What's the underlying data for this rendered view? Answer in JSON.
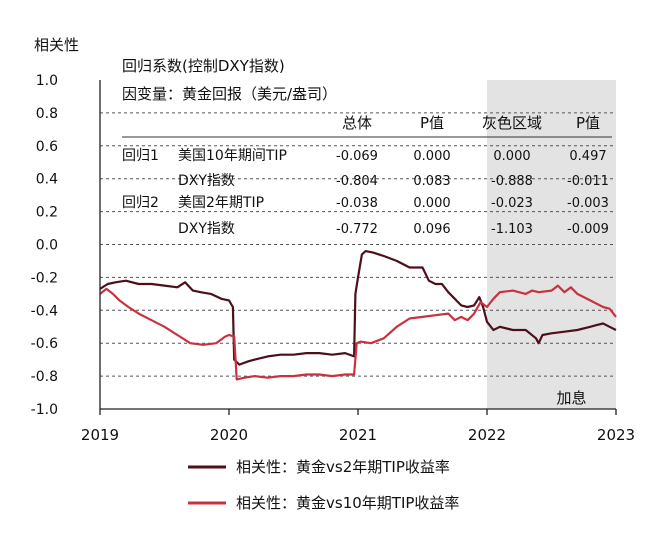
{
  "chart_data": {
    "type": "line",
    "ylabel": "相关性",
    "ylim": [
      -1.0,
      1.0
    ],
    "yticks": [
      "1.0",
      "0.8",
      "0.6",
      "0.4",
      "0.2",
      "0.0",
      "-0.2",
      "-0.4",
      "-0.6",
      "-0.8",
      "-1.0"
    ],
    "xlim": [
      2019.0,
      2023.0
    ],
    "xticks": [
      "2019",
      "2020",
      "2021",
      "2022",
      "2023"
    ],
    "grid": "horizontal dashed",
    "legend_position": "bottom",
    "shaded_region": {
      "x_start": 2022.0,
      "x_end": 2023.0,
      "label": "加息",
      "color": "#e3e3e3"
    },
    "series": [
      {
        "name": "相关性：黄金vs2年期TIP收益率",
        "color": "#4d0f1c",
        "points": [
          [
            2019.0,
            -0.27
          ],
          [
            2019.06,
            -0.24
          ],
          [
            2019.12,
            -0.23
          ],
          [
            2019.2,
            -0.22
          ],
          [
            2019.3,
            -0.24
          ],
          [
            2019.4,
            -0.24
          ],
          [
            2019.5,
            -0.25
          ],
          [
            2019.6,
            -0.26
          ],
          [
            2019.66,
            -0.23
          ],
          [
            2019.72,
            -0.28
          ],
          [
            2019.78,
            -0.29
          ],
          [
            2019.86,
            -0.3
          ],
          [
            2019.94,
            -0.33
          ],
          [
            2020.0,
            -0.34
          ],
          [
            2020.03,
            -0.38
          ],
          [
            2020.04,
            -0.7
          ],
          [
            2020.08,
            -0.73
          ],
          [
            2020.15,
            -0.71
          ],
          [
            2020.2,
            -0.7
          ],
          [
            2020.3,
            -0.68
          ],
          [
            2020.4,
            -0.67
          ],
          [
            2020.5,
            -0.67
          ],
          [
            2020.6,
            -0.66
          ],
          [
            2020.7,
            -0.66
          ],
          [
            2020.8,
            -0.67
          ],
          [
            2020.9,
            -0.66
          ],
          [
            2020.97,
            -0.68
          ],
          [
            2020.98,
            -0.3
          ],
          [
            2021.0,
            -0.2
          ],
          [
            2021.03,
            -0.06
          ],
          [
            2021.06,
            -0.04
          ],
          [
            2021.12,
            -0.05
          ],
          [
            2021.2,
            -0.07
          ],
          [
            2021.3,
            -0.1
          ],
          [
            2021.4,
            -0.14
          ],
          [
            2021.5,
            -0.14
          ],
          [
            2021.55,
            -0.22
          ],
          [
            2021.6,
            -0.24
          ],
          [
            2021.65,
            -0.24
          ],
          [
            2021.7,
            -0.29
          ],
          [
            2021.8,
            -0.37
          ],
          [
            2021.85,
            -0.38
          ],
          [
            2021.9,
            -0.37
          ],
          [
            2021.94,
            -0.32
          ],
          [
            2021.97,
            -0.38
          ],
          [
            2022.0,
            -0.47
          ],
          [
            2022.05,
            -0.52
          ],
          [
            2022.1,
            -0.5
          ],
          [
            2022.2,
            -0.52
          ],
          [
            2022.3,
            -0.52
          ],
          [
            2022.38,
            -0.57
          ],
          [
            2022.4,
            -0.6
          ],
          [
            2022.43,
            -0.55
          ],
          [
            2022.5,
            -0.54
          ],
          [
            2022.6,
            -0.53
          ],
          [
            2022.7,
            -0.52
          ],
          [
            2022.8,
            -0.5
          ],
          [
            2022.85,
            -0.49
          ],
          [
            2022.9,
            -0.48
          ],
          [
            2022.95,
            -0.5
          ],
          [
            2023.0,
            -0.52
          ]
        ]
      },
      {
        "name": "相关性：黄金vs10年期TIP收益率",
        "color": "#c8323f",
        "points": [
          [
            2019.0,
            -0.3
          ],
          [
            2019.05,
            -0.27
          ],
          [
            2019.1,
            -0.3
          ],
          [
            2019.15,
            -0.34
          ],
          [
            2019.22,
            -0.38
          ],
          [
            2019.3,
            -0.42
          ],
          [
            2019.4,
            -0.46
          ],
          [
            2019.5,
            -0.5
          ],
          [
            2019.6,
            -0.55
          ],
          [
            2019.7,
            -0.6
          ],
          [
            2019.8,
            -0.61
          ],
          [
            2019.9,
            -0.6
          ],
          [
            2019.97,
            -0.56
          ],
          [
            2020.0,
            -0.55
          ],
          [
            2020.04,
            -0.56
          ],
          [
            2020.06,
            -0.82
          ],
          [
            2020.12,
            -0.81
          ],
          [
            2020.2,
            -0.8
          ],
          [
            2020.3,
            -0.81
          ],
          [
            2020.4,
            -0.8
          ],
          [
            2020.5,
            -0.8
          ],
          [
            2020.6,
            -0.79
          ],
          [
            2020.7,
            -0.79
          ],
          [
            2020.8,
            -0.8
          ],
          [
            2020.9,
            -0.79
          ],
          [
            2020.97,
            -0.79
          ],
          [
            2020.99,
            -0.6
          ],
          [
            2021.02,
            -0.59
          ],
          [
            2021.1,
            -0.6
          ],
          [
            2021.2,
            -0.57
          ],
          [
            2021.3,
            -0.5
          ],
          [
            2021.4,
            -0.45
          ],
          [
            2021.5,
            -0.44
          ],
          [
            2021.6,
            -0.43
          ],
          [
            2021.7,
            -0.42
          ],
          [
            2021.75,
            -0.46
          ],
          [
            2021.8,
            -0.44
          ],
          [
            2021.85,
            -0.46
          ],
          [
            2021.9,
            -0.42
          ],
          [
            2021.95,
            -0.35
          ],
          [
            2022.0,
            -0.38
          ],
          [
            2022.05,
            -0.33
          ],
          [
            2022.1,
            -0.29
          ],
          [
            2022.2,
            -0.28
          ],
          [
            2022.3,
            -0.3
          ],
          [
            2022.35,
            -0.28
          ],
          [
            2022.4,
            -0.29
          ],
          [
            2022.5,
            -0.28
          ],
          [
            2022.55,
            -0.25
          ],
          [
            2022.6,
            -0.29
          ],
          [
            2022.65,
            -0.26
          ],
          [
            2022.7,
            -0.3
          ],
          [
            2022.8,
            -0.34
          ],
          [
            2022.85,
            -0.36
          ],
          [
            2022.9,
            -0.38
          ],
          [
            2022.95,
            -0.39
          ],
          [
            2023.0,
            -0.44
          ]
        ]
      }
    ]
  },
  "regression_table": {
    "title": "回归系数(控制DXY指数)",
    "subtitle": "因变量：黄金回报（美元/盎司）",
    "headers": [
      "总体",
      "P值",
      "灰色区域",
      "P值"
    ],
    "rows": [
      {
        "group": "回归1",
        "label": "美国10年期间TIP",
        "values": [
          "-0.069",
          "0.000",
          "0.000",
          "0.497"
        ]
      },
      {
        "group": "",
        "label": "DXY指数",
        "values": [
          "-0.804",
          "0.083",
          "-0.888",
          "-0.011"
        ]
      },
      {
        "group": "回归2",
        "label": "美国2年期TIP",
        "values": [
          "-0.038",
          "0.000",
          "-0.023",
          "-0.003"
        ]
      },
      {
        "group": "",
        "label": "DXY指数",
        "values": [
          "-0.772",
          "0.096",
          "-1.103",
          "-0.009"
        ]
      }
    ]
  }
}
